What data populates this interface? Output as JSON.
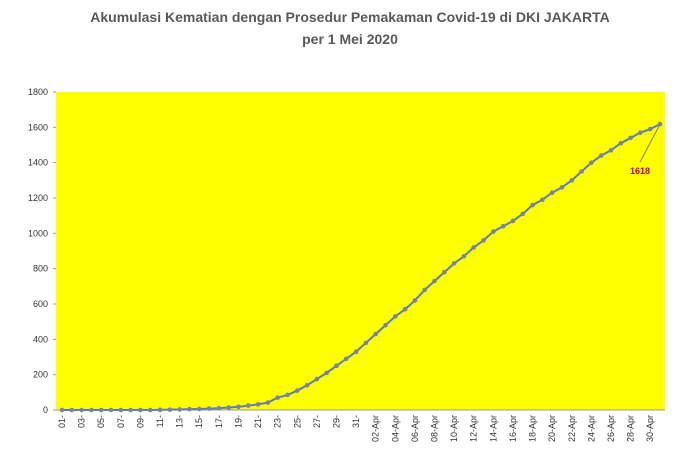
{
  "chart_data": {
    "type": "line",
    "title": "Akumulasi Kematian dengan Prosedur Pemakaman Covid-19 di DKI JAKARTA",
    "subtitle": "per 1 Mei 2020",
    "categories": [
      "01-",
      null,
      "03-",
      null,
      "05-",
      null,
      "07-",
      null,
      "09-",
      null,
      "11-",
      null,
      "13-",
      null,
      "15-",
      null,
      "17-",
      null,
      "19-",
      null,
      "21-",
      null,
      "23-",
      null,
      "25-",
      null,
      "27-",
      null,
      "29-",
      null,
      "31-",
      null,
      "02-Apr",
      null,
      "04-Apr",
      null,
      "06-Apr",
      null,
      "08-Apr",
      null,
      "10-Apr",
      null,
      "12-Apr",
      null,
      "14-Apr",
      null,
      "16-Apr",
      null,
      "18-Apr",
      null,
      "20-Apr",
      null,
      "22-Apr",
      null,
      "24-Apr",
      null,
      "26-Apr",
      null,
      "28-Apr",
      null,
      "30-Apr",
      null
    ],
    "series": [
      {
        "name": "Akumulasi Kematian",
        "color": "#4f81bd",
        "marker_color": "#7f7f9f",
        "values": [
          0,
          0,
          0,
          0,
          0,
          0,
          0,
          0,
          0,
          0,
          1,
          2,
          3,
          5,
          6,
          8,
          10,
          14,
          18,
          25,
          32,
          42,
          70,
          85,
          110,
          140,
          175,
          210,
          250,
          290,
          330,
          380,
          430,
          480,
          530,
          570,
          620,
          680,
          730,
          780,
          830,
          870,
          920,
          960,
          1010,
          1040,
          1070,
          1110,
          1160,
          1190,
          1230,
          1260,
          1300,
          1350,
          1400,
          1440,
          1470,
          1510,
          1540,
          1570,
          1590,
          1618
        ]
      }
    ],
    "ylim": [
      0,
      1800
    ],
    "yticks": [
      0,
      200,
      400,
      600,
      800,
      1000,
      1200,
      1400,
      1600,
      1800
    ],
    "background": "#ffff00",
    "label_color": "#c00000"
  }
}
